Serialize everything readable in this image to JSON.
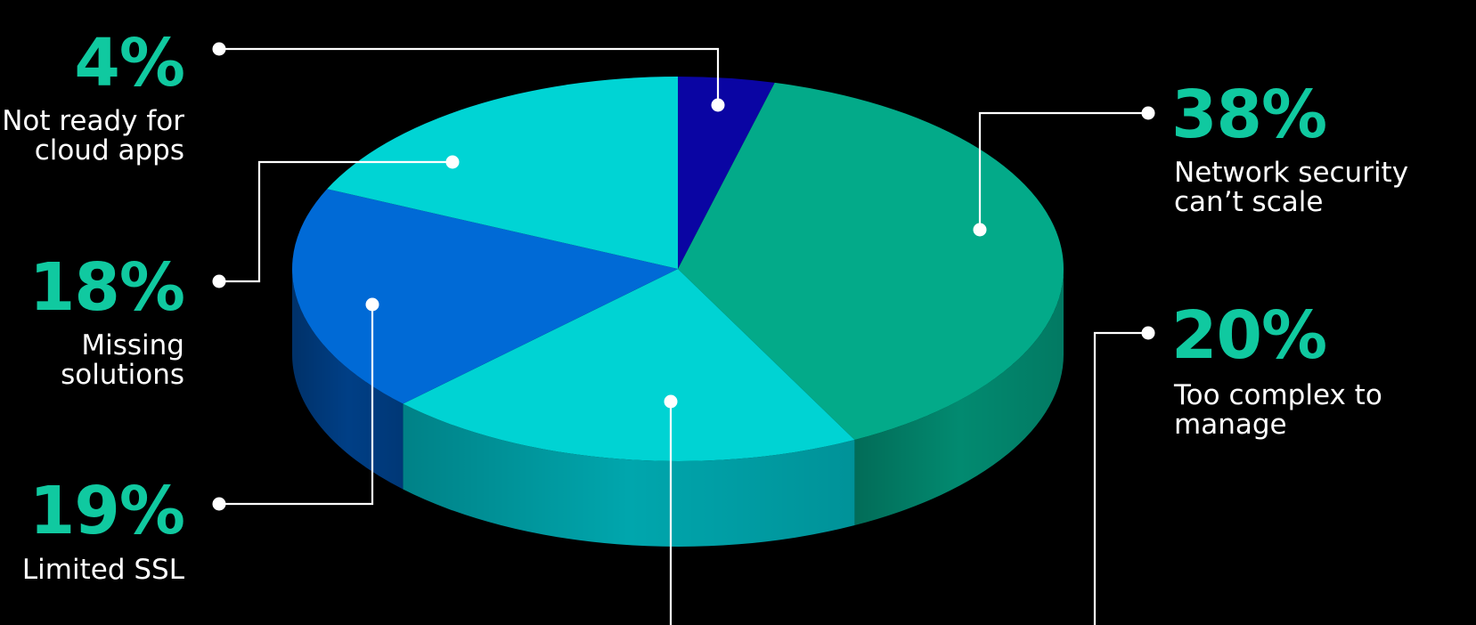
{
  "chart_data": {
    "type": "pie",
    "title": "",
    "slices": [
      {
        "label": "Not ready for cloud apps",
        "pct_text": "4%",
        "value": 4,
        "color": "#0a05a3",
        "side_color": "#070470"
      },
      {
        "label": "Network security can’t scale",
        "pct_text": "38%",
        "value": 38,
        "color": "#03aa89",
        "side_color": "#028a70"
      },
      {
        "label": "Too complex to manage",
        "pct_text": "20%",
        "value": 20,
        "color": "#00d3d3",
        "side_color": "#00a6ad"
      },
      {
        "label": "Limited SSL",
        "pct_text": "19%",
        "value": 19,
        "color": "#006ad6",
        "side_color": "#003f86"
      },
      {
        "label": "Missing solutions",
        "pct_text": "18%",
        "value": 18,
        "color": "#00d4d4",
        "side_color": "#00a8ae"
      }
    ]
  },
  "labels": {
    "s0": {
      "pct": "4%",
      "line1": "Not ready for",
      "line2": "cloud apps"
    },
    "s1": {
      "pct": "38%",
      "line1": "Network security",
      "line2": "can’t scale"
    },
    "s2": {
      "pct": "20%",
      "line1": "Too complex to",
      "line2": "manage"
    },
    "s3": {
      "pct": "19%",
      "line1": "Limited SSL",
      "line2": ""
    },
    "s4": {
      "pct": "18%",
      "line1": "Missing",
      "line2": "solutions"
    }
  },
  "colors": {
    "accent": "#10c9a0",
    "background": "#000000",
    "text": "#ffffff",
    "leader": "#ffffff"
  }
}
